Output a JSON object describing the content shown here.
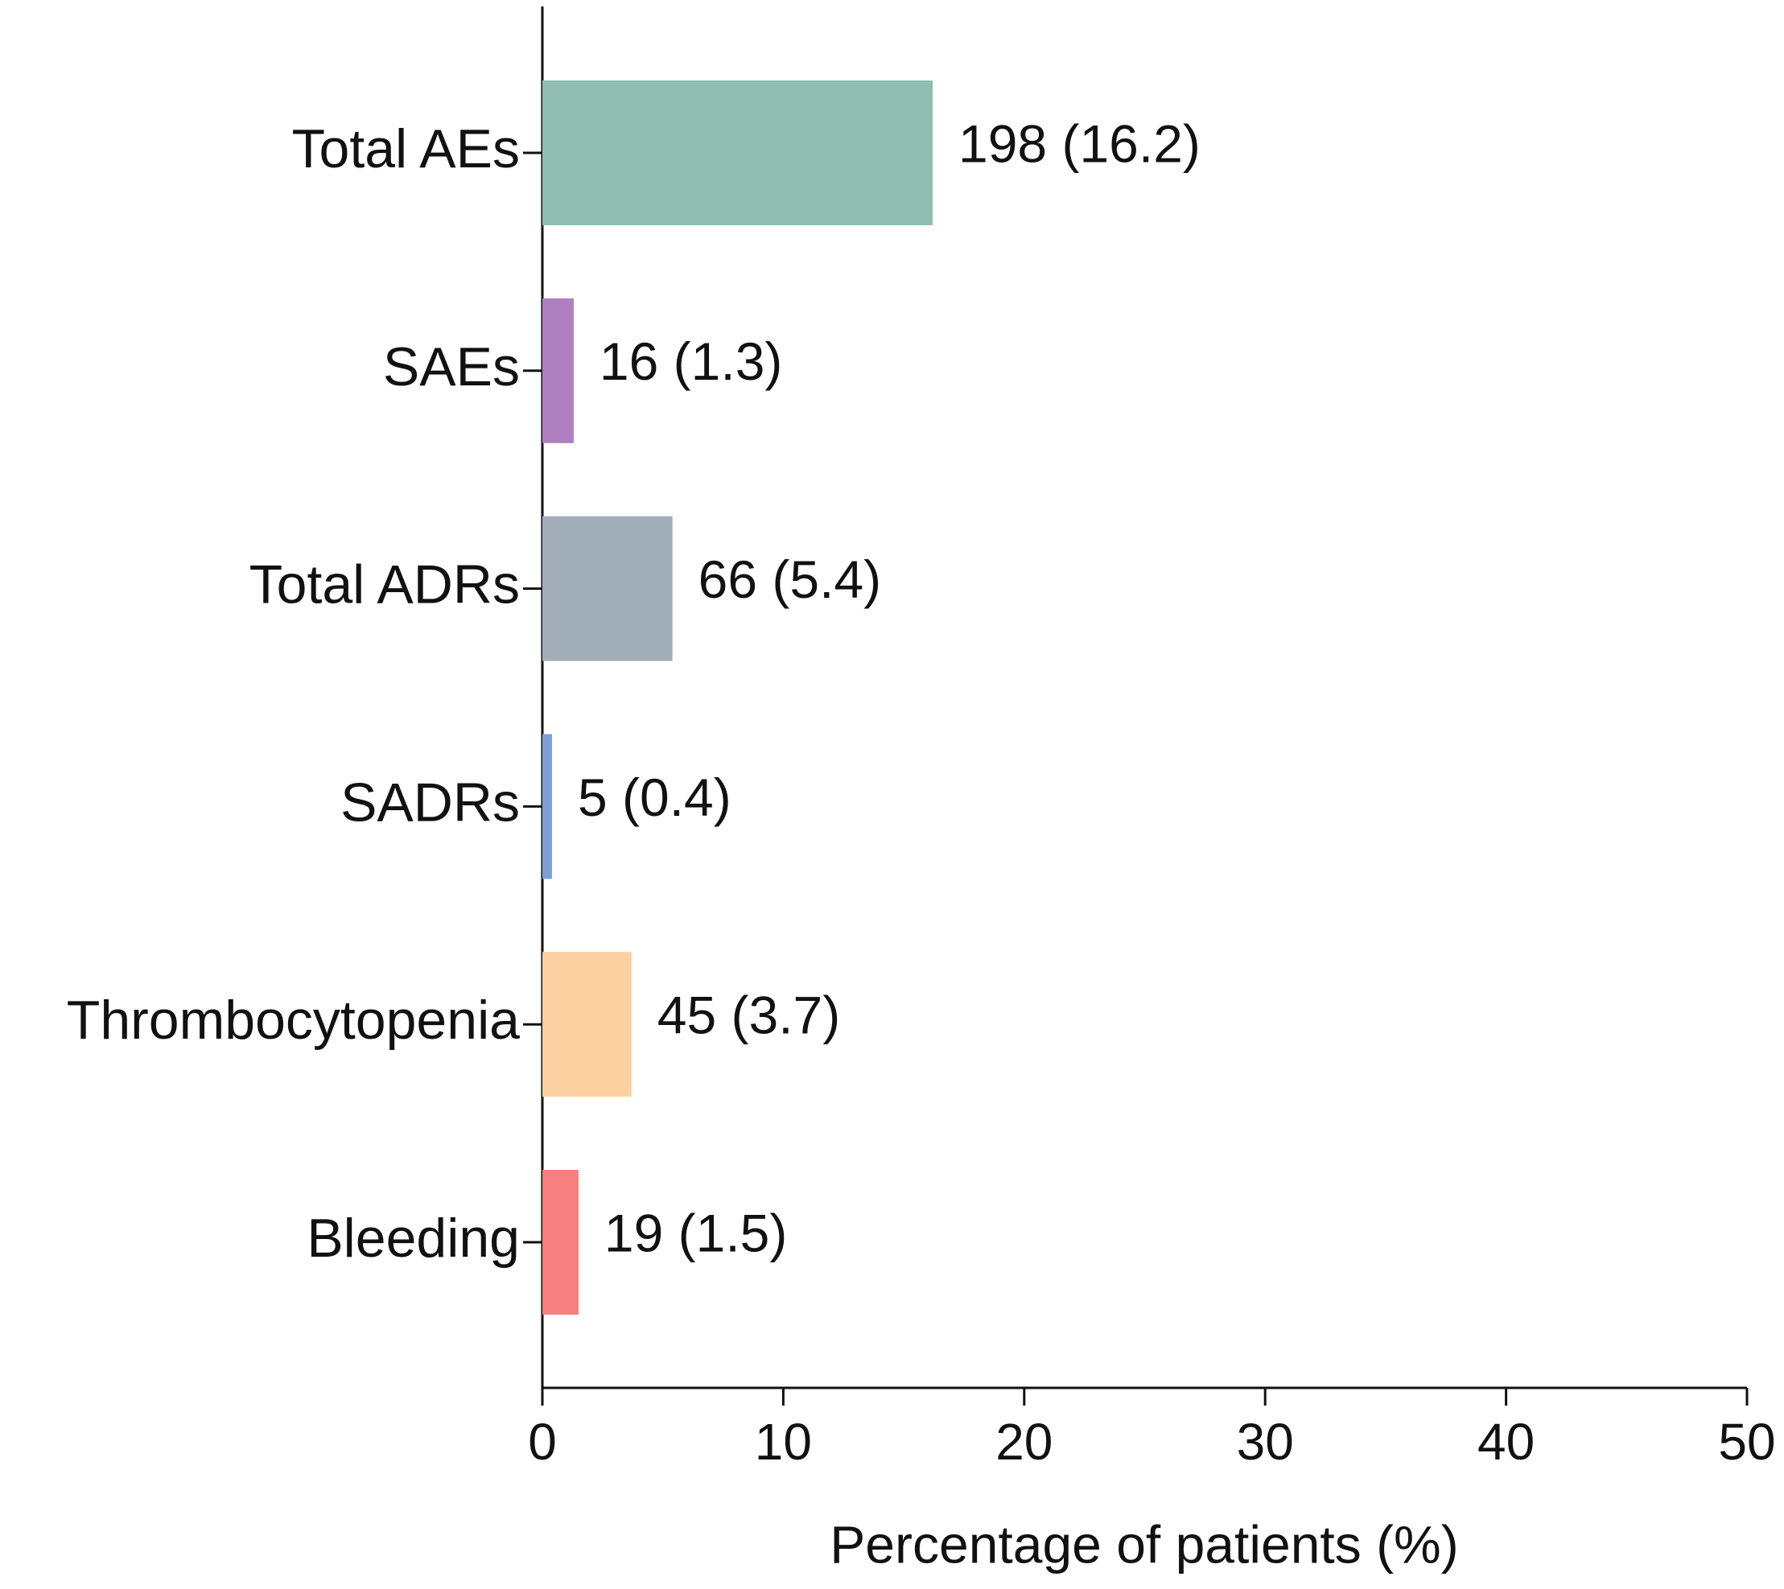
{
  "chart_data": {
    "type": "bar",
    "orientation": "horizontal",
    "categories": [
      "Total AEs",
      "SAEs",
      "Total ADRs",
      "SADRs",
      "Thrombocytopenia",
      "Bleeding"
    ],
    "values": [
      16.2,
      1.3,
      5.4,
      0.4,
      3.7,
      1.5
    ],
    "value_labels": [
      "198 (16.2)",
      "16 (1.3)",
      "66 (5.4)",
      "5 (0.4)",
      "45 (3.7)",
      "19 (1.5)"
    ],
    "colors": [
      "#8fbfb0",
      "#b07fc0",
      "#a3aebb",
      "#7f9fd6",
      "#fdd0a2",
      "#f77f7f"
    ],
    "xlim": [
      0,
      50
    ],
    "xticks": [
      0,
      10,
      20,
      30,
      40,
      50
    ],
    "xlabel": "Percentage of patients (%)"
  }
}
